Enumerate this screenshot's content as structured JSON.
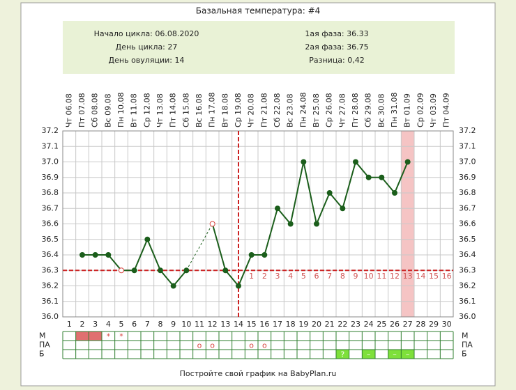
{
  "chart_data": {
    "type": "line",
    "title": "Базальная температура: #4",
    "info_left": [
      "Начало цикла: 06.08.2020",
      "День цикла: 27",
      "День овуляции: 14"
    ],
    "info_right": [
      "1ая фаза: 36.33",
      "2ая фаза: 36.75",
      "Разница: 0,42"
    ],
    "categories": [
      "Чт 06.08",
      "Пт 07.08",
      "Сб 08.08",
      "Вс 09.08",
      "Пн 10.08",
      "Вт 11.08",
      "Ср 12.08",
      "Чт 13.08",
      "Пт 14.08",
      "Сб 15.08",
      "Вс 16.08",
      "Пн 17.08",
      "Вт 18.08",
      "Ср 19.08",
      "Чт 20.08",
      "Пт 21.08",
      "Сб 22.08",
      "Вс 23.08",
      "Пн 24.08",
      "Вт 25.08",
      "Ср 26.08",
      "Чт 27.08",
      "Пт 28.08",
      "Сб 29.08",
      "Вс 30.08",
      "Пн 31.08",
      "Вт 01.09",
      "Ср 02.09",
      "Чт 03.09",
      "Пт 04.09"
    ],
    "days": [
      1,
      2,
      3,
      4,
      5,
      6,
      7,
      8,
      9,
      10,
      11,
      12,
      13,
      14,
      15,
      16,
      17,
      18,
      19,
      20,
      21,
      22,
      23,
      24,
      25,
      26,
      27,
      28,
      29,
      30
    ],
    "values": [
      null,
      36.4,
      36.4,
      36.4,
      36.3,
      36.3,
      36.5,
      36.3,
      36.2,
      36.3,
      null,
      36.6,
      36.3,
      36.2,
      36.4,
      36.4,
      36.7,
      36.6,
      37.0,
      36.6,
      36.8,
      36.7,
      37.0,
      36.9,
      36.9,
      36.8,
      37.0,
      null,
      null,
      null
    ],
    "point_styles": [
      null,
      "filled",
      "filled",
      "filled",
      "hollow",
      "filled",
      "filled",
      "filled",
      "filled",
      "filled",
      null,
      "hollow",
      "filled",
      "filled",
      "filled",
      "filled",
      "filled",
      "filled",
      "filled",
      "filled",
      "filled",
      "filled",
      "filled",
      "filled",
      "filled",
      "filled",
      "filled",
      null,
      null,
      null
    ],
    "color": "#1b5e1b",
    "ylim": [
      36.0,
      37.2
    ],
    "yticks": [
      {
        "value": 36.0,
        "label": "36.0"
      },
      36.1,
      36.2,
      36.3,
      36.4,
      36.5,
      36.6,
      36.7,
      36.8,
      36.9,
      {
        "value": 37.0,
        "label": "37.0"
      },
      37.1,
      37.2
    ],
    "grid": true,
    "coverline": 36.3,
    "ovulation_day": 14,
    "phase2_days": [
      1,
      2,
      3,
      4,
      5,
      6,
      7,
      8,
      9,
      10,
      11,
      12,
      13,
      14,
      15,
      16
    ],
    "highlight_day": 27,
    "highlight_color": "#f5c4c4",
    "marker_color": "#d9443f",
    "table": [
      {
        "label": "М",
        "marks": [
          {
            "day": 2,
            "fill": "#e07070"
          },
          {
            "day": 3,
            "fill": "#e07070"
          },
          {
            "day": 4,
            "text": "*"
          },
          {
            "day": 5,
            "text": "*"
          }
        ]
      },
      {
        "label": "ПА",
        "marks": [
          {
            "day": 11,
            "text": "o"
          },
          {
            "day": 12,
            "text": "o"
          },
          {
            "day": 15,
            "text": "o"
          },
          {
            "day": 16,
            "text": "o"
          }
        ]
      },
      {
        "label": "Б",
        "marks": [
          {
            "day": 22,
            "text": "?",
            "fill": "#7ee03a"
          },
          {
            "day": 24,
            "text": "–",
            "fill": "#7ee03a"
          },
          {
            "day": 26,
            "text": "–",
            "fill": "#7ee03a"
          },
          {
            "day": 27,
            "text": "–",
            "fill": "#7ee03a"
          }
        ]
      }
    ],
    "footer": "Постройте свой график на BabyPlan.ru"
  }
}
